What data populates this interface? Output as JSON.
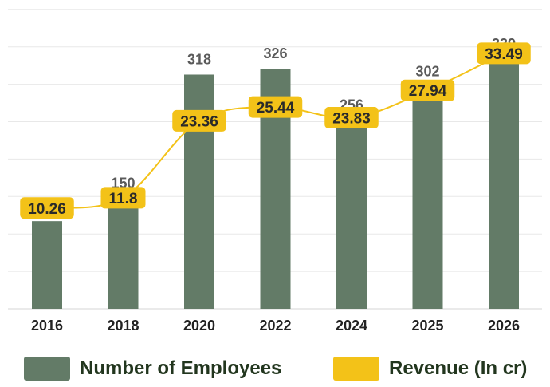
{
  "chart_data": {
    "type": "bar",
    "categories": [
      "2016",
      "2018",
      "2020",
      "2022",
      "2024",
      "2025",
      "2026"
    ],
    "series": [
      {
        "name": "Number of Employees",
        "type": "bar",
        "values": [
          119,
          150,
          318,
          326,
          256,
          302,
          339
        ],
        "color": "#637b67"
      },
      {
        "name": "Revenue (In cr)",
        "type": "line",
        "values": [
          10.26,
          11.8,
          23.36,
          25.44,
          23.83,
          27.94,
          33.49
        ],
        "color": "#f3c218"
      }
    ],
    "grid": true,
    "legend": "bottom",
    "title": "",
    "xlabel": "",
    "ylabel": ""
  }
}
